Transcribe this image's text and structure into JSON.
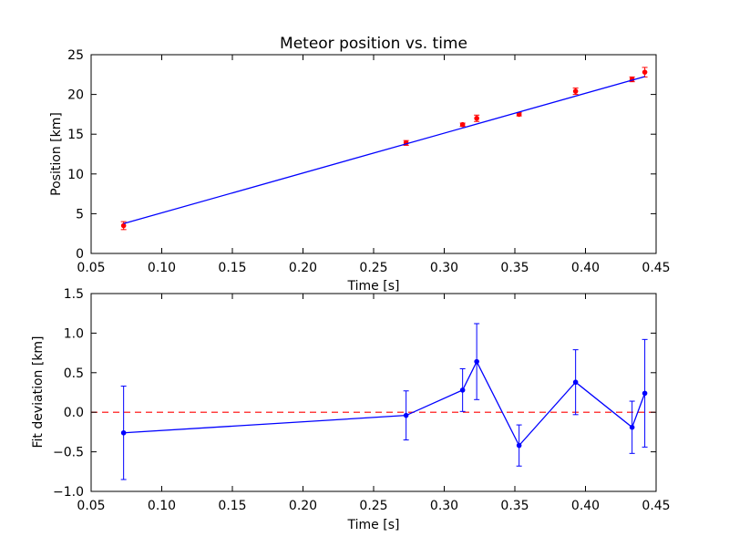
{
  "chart_data": [
    {
      "type": "line",
      "title": "Meteor position vs. time",
      "xlabel": "Time [s]",
      "ylabel": "Position [km]",
      "xlim": [
        0.05,
        0.45
      ],
      "ylim": [
        0,
        25
      ],
      "xticks": [
        "0.05",
        "0.10",
        "0.15",
        "0.20",
        "0.25",
        "0.30",
        "0.35",
        "0.40",
        "0.45"
      ],
      "yticks": [
        "0",
        "5",
        "10",
        "15",
        "20",
        "25"
      ],
      "grid": false,
      "series": [
        {
          "kind": "errorbar-points",
          "color": "#ff0000",
          "x": [
            0.073,
            0.273,
            0.313,
            0.323,
            0.353,
            0.393,
            0.433,
            0.442
          ],
          "y": [
            3.5,
            13.9,
            16.2,
            17.0,
            17.5,
            20.4,
            21.9,
            22.8
          ],
          "yerr": [
            0.5,
            0.3,
            0.2,
            0.4,
            0.2,
            0.4,
            0.3,
            0.6
          ]
        },
        {
          "kind": "fit-line",
          "color": "#0000ff",
          "x": [
            0.073,
            0.442
          ],
          "y": [
            3.75,
            22.25
          ]
        }
      ]
    },
    {
      "type": "line",
      "title": "",
      "xlabel": "Time [s]",
      "ylabel": "Fit deviation [km]",
      "xlim": [
        0.05,
        0.45
      ],
      "ylim": [
        -1.0,
        1.5
      ],
      "xticks": [
        "0.05",
        "0.10",
        "0.15",
        "0.20",
        "0.25",
        "0.30",
        "0.35",
        "0.40",
        "0.45"
      ],
      "yticks": [
        "−1.0",
        "−0.5",
        "0.0",
        "0.5",
        "1.0",
        "1.5"
      ],
      "grid": false,
      "reference_line": {
        "y": 0,
        "color": "#ff0000",
        "style": "dashed"
      },
      "series": [
        {
          "kind": "errorbar-line",
          "color": "#0000ff",
          "x": [
            0.073,
            0.273,
            0.313,
            0.323,
            0.353,
            0.393,
            0.433,
            0.442
          ],
          "y": [
            -0.26,
            -0.04,
            0.28,
            0.64,
            -0.42,
            0.38,
            -0.19,
            0.24
          ],
          "yerr": [
            0.59,
            0.31,
            0.27,
            0.48,
            0.26,
            0.41,
            0.33,
            0.68
          ]
        }
      ]
    }
  ]
}
